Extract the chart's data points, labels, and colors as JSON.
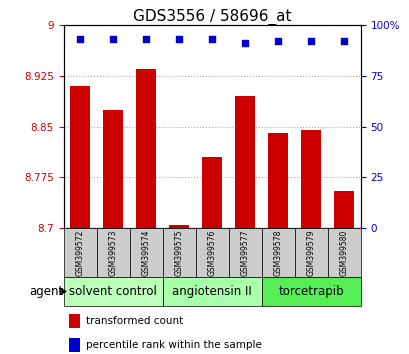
{
  "title": "GDS3556 / 58696_at",
  "samples": [
    "GSM399572",
    "GSM399573",
    "GSM399574",
    "GSM399575",
    "GSM399576",
    "GSM399577",
    "GSM399578",
    "GSM399579",
    "GSM399580"
  ],
  "bar_values": [
    8.91,
    8.875,
    8.935,
    8.705,
    8.805,
    8.895,
    8.84,
    8.845,
    8.755
  ],
  "percentile_values": [
    93,
    93,
    93,
    93,
    93,
    91,
    92,
    92,
    92
  ],
  "bar_color": "#cc0000",
  "dot_color": "#0000cc",
  "ylim_left": [
    8.7,
    9.0
  ],
  "ylim_right": [
    0,
    100
  ],
  "yticks_left": [
    8.7,
    8.775,
    8.85,
    8.925,
    9.0
  ],
  "yticks_right": [
    0,
    25,
    50,
    75,
    100
  ],
  "ytick_labels_left": [
    "8.7",
    "8.775",
    "8.85",
    "8.925",
    "9"
  ],
  "ytick_labels_right": [
    "0",
    "25",
    "50",
    "75",
    "100%"
  ],
  "groups": [
    {
      "label": "solvent control",
      "samples": [
        0,
        1,
        2
      ],
      "color": "#bbffbb"
    },
    {
      "label": "angiotensin II",
      "samples": [
        3,
        4,
        5
      ],
      "color": "#aaffaa"
    },
    {
      "label": "torcetrapib",
      "samples": [
        6,
        7,
        8
      ],
      "color": "#55ee55"
    }
  ],
  "agent_label": "agent",
  "legend_bar_label": "transformed count",
  "legend_dot_label": "percentile rank within the sample",
  "bar_width": 0.6,
  "gridline_color": "#aaaaaa",
  "tick_label_color_left": "#cc0000",
  "tick_label_color_right": "#0000cc",
  "sample_box_color": "#cccccc",
  "title_fontsize": 11,
  "axis_fontsize": 7.5,
  "sample_fontsize": 5.5,
  "group_label_fontsize": 8.5,
  "legend_fontsize": 7.5
}
